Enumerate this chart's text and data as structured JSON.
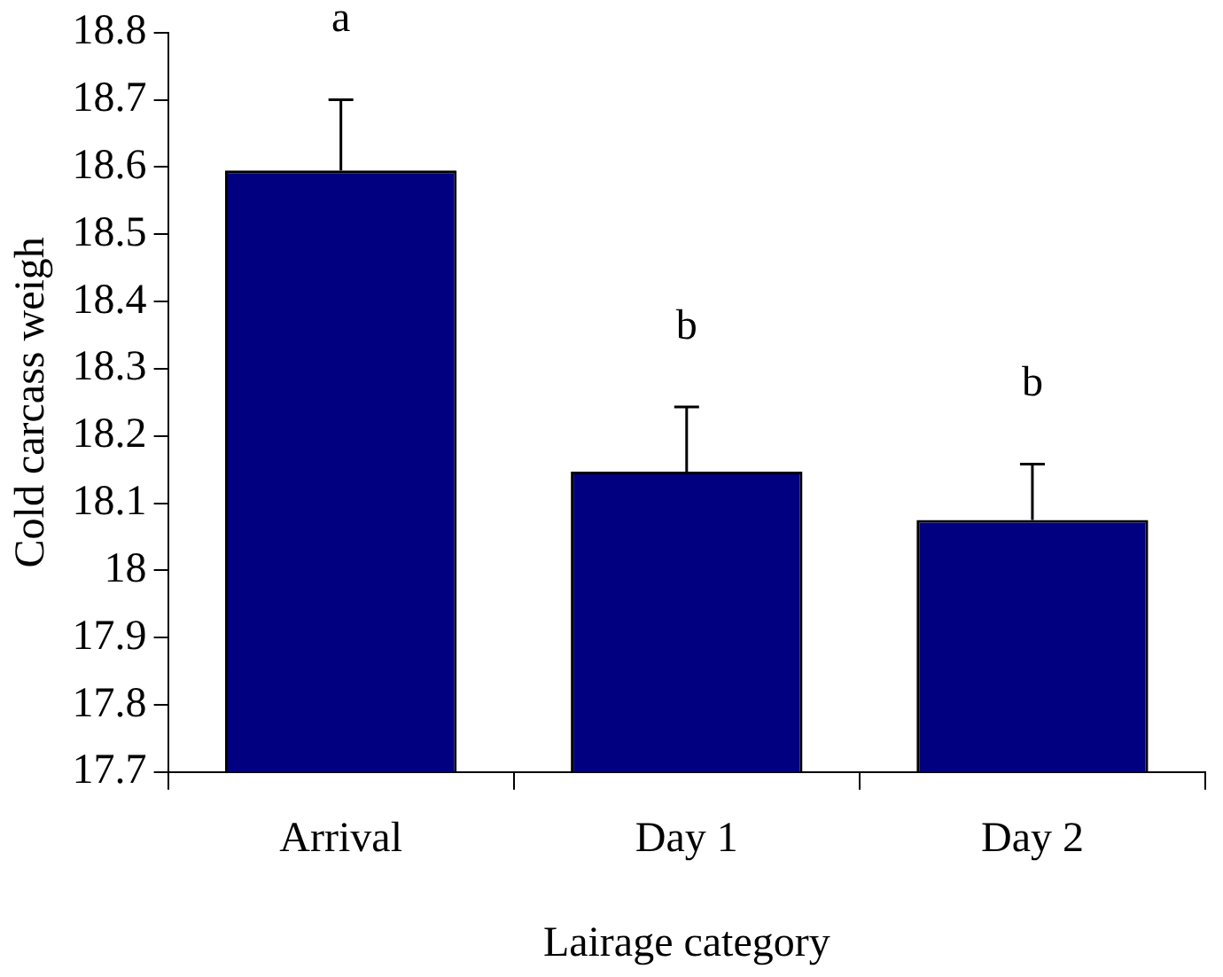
{
  "chart_data": {
    "type": "bar",
    "xlabel": "Lairage category",
    "ylabel": "Cold carcass weigh",
    "categories": [
      "Arrival",
      "Day 1",
      "Day 2"
    ],
    "values": [
      18.595,
      18.147,
      18.075
    ],
    "errors": [
      [
        18.595,
        18.7
      ],
      [
        18.147,
        18.243
      ],
      [
        18.075,
        18.158
      ]
    ],
    "color": "#000080",
    "ylim": [
      17.7,
      18.8
    ],
    "yticks": [
      17.7,
      17.8,
      17.9,
      {
        "value": 18,
        "label": "18"
      },
      18.1,
      18.2,
      18.3,
      18.4,
      18.5,
      18.6,
      18.7,
      18.8
    ],
    "grid": false,
    "legend": false,
    "annotations": [
      "a",
      "b",
      "b"
    ]
  }
}
